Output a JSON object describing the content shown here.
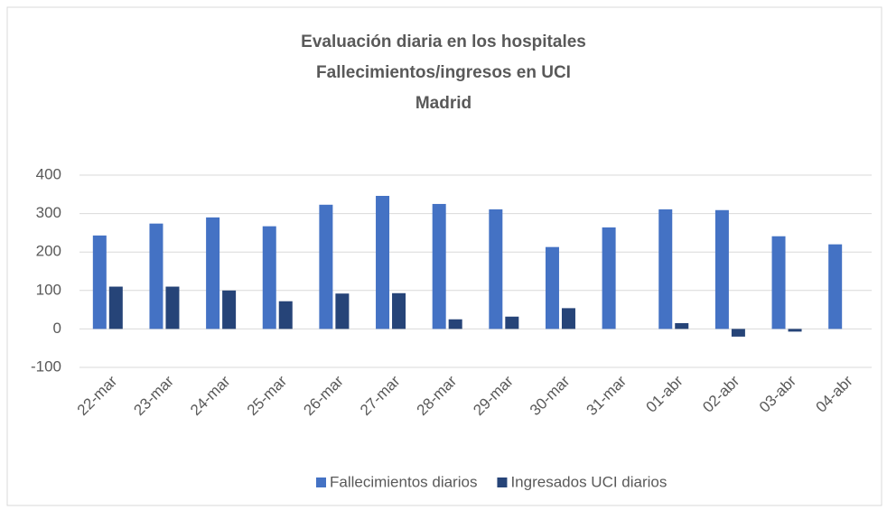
{
  "chart_data": {
    "type": "bar",
    "title": [
      "Evaluación diaria en los hospitales",
      "Fallecimientos/ingresos en UCI",
      "Madrid"
    ],
    "categories": [
      "22-mar",
      "23-mar",
      "24-mar",
      "25-mar",
      "26-mar",
      "27-mar",
      "28-mar",
      "29-mar",
      "30-mar",
      "31-mar",
      "01-abr",
      "02-abr",
      "03-abr",
      "04-abr"
    ],
    "series": [
      {
        "name": "Fallecimientos diarios",
        "color": "#4472c4",
        "values": [
          243,
          274,
          290,
          267,
          323,
          346,
          325,
          311,
          213,
          264,
          311,
          309,
          241,
          220
        ]
      },
      {
        "name": "Ingresados UCI diarios",
        "color": "#264478",
        "values": [
          110,
          110,
          100,
          72,
          92,
          93,
          25,
          32,
          54,
          null,
          15,
          -20,
          -7,
          null
        ]
      }
    ],
    "ylim": [
      -100,
      400
    ],
    "yticks": [
      -100,
      0,
      100,
      200,
      300,
      400
    ],
    "grid": true,
    "legend": "bottom"
  }
}
